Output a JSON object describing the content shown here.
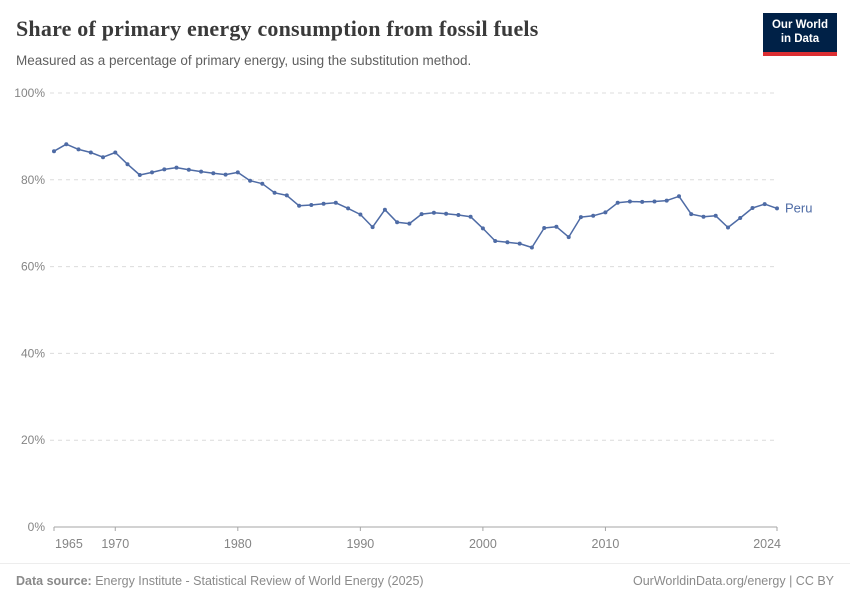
{
  "header": {
    "title": "Share of primary energy consumption from fossil fuels",
    "subtitle": "Measured as a percentage of primary energy, using the substitution method.",
    "logo": {
      "line1": "Our World",
      "line2": "in Data"
    }
  },
  "chart_data": {
    "type": "line",
    "title": "Share of primary energy consumption from fossil fuels",
    "xlabel": "",
    "ylabel": "",
    "xlim": [
      1965,
      2024
    ],
    "ylim": [
      0,
      100
    ],
    "grid": "horizontal-dashed",
    "legend_position": "end-of-line",
    "x_ticks": [
      1965,
      1970,
      1980,
      1990,
      2000,
      2010,
      2024
    ],
    "y_ticks": [
      0,
      20,
      40,
      60,
      80,
      100
    ],
    "y_tick_suffix": "%",
    "series": [
      {
        "name": "Peru",
        "color": "#4e6ba5",
        "x": [
          1965,
          1966,
          1967,
          1968,
          1969,
          1970,
          1971,
          1972,
          1973,
          1974,
          1975,
          1976,
          1977,
          1978,
          1979,
          1980,
          1981,
          1982,
          1983,
          1984,
          1985,
          1986,
          1987,
          1988,
          1989,
          1990,
          1991,
          1992,
          1993,
          1994,
          1995,
          1996,
          1997,
          1998,
          1999,
          2000,
          2001,
          2002,
          2003,
          2004,
          2005,
          2006,
          2007,
          2008,
          2009,
          2010,
          2011,
          2012,
          2013,
          2014,
          2015,
          2016,
          2017,
          2018,
          2019,
          2020,
          2021,
          2022,
          2023,
          2024
        ],
        "values": [
          86.6,
          88.2,
          87.0,
          86.3,
          85.2,
          86.3,
          83.6,
          81.1,
          81.7,
          82.4,
          82.8,
          82.3,
          81.9,
          81.5,
          81.2,
          81.7,
          79.8,
          79.1,
          77.0,
          76.4,
          74.0,
          74.2,
          74.5,
          74.7,
          73.4,
          72.0,
          69.1,
          73.1,
          70.2,
          69.9,
          72.1,
          72.4,
          72.2,
          71.9,
          71.5,
          68.8,
          65.9,
          65.6,
          65.3,
          64.4,
          68.9,
          69.2,
          66.8,
          71.4,
          71.7,
          72.5,
          74.7,
          75.0,
          74.9,
          75.0,
          75.2,
          76.2,
          72.1,
          71.5,
          71.7,
          69.0,
          71.2,
          73.5,
          74.4,
          73.4
        ]
      }
    ]
  },
  "footer": {
    "source_prefix": "Data source:",
    "source_text": " Energy Institute - Statistical Review of World Energy (2025)",
    "credit": "OurWorldinData.org/energy | CC BY"
  },
  "colors": {
    "line": "#4e6ba5",
    "logo_bg": "#002147",
    "logo_accent": "#dc2e32",
    "grid": "#dcdcdc",
    "axis": "#a5a5a5",
    "tick_label": "#858585"
  }
}
